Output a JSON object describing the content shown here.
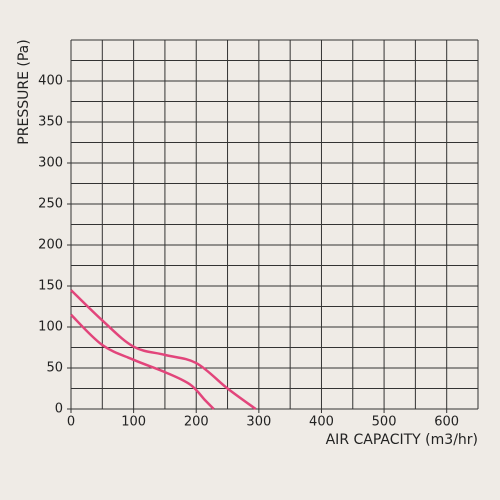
{
  "chart_data": {
    "type": "line",
    "xlabel": "AIR CAPACITY (m3/hr)",
    "ylabel": "PRESSURE (Pa)",
    "xlim": [
      0,
      650
    ],
    "ylim": [
      0,
      450
    ],
    "xticks": [
      0,
      100,
      200,
      300,
      400,
      500,
      600
    ],
    "yticks": [
      0,
      50,
      100,
      150,
      200,
      250,
      300,
      350,
      400
    ],
    "xgrid": [
      0,
      50,
      100,
      150,
      200,
      250,
      300,
      350,
      400,
      450,
      500,
      550,
      600,
      650
    ],
    "ygrid": [
      0,
      25,
      50,
      75,
      100,
      125,
      150,
      175,
      200,
      225,
      250,
      275,
      300,
      325,
      350,
      375,
      400,
      425,
      450
    ],
    "grid": true,
    "series": [
      {
        "color": "#e2457b",
        "x": [
          0,
          50,
          100,
          150,
          200,
          250,
          295
        ],
        "values": [
          145,
          108,
          76,
          66,
          56,
          25,
          0
        ]
      },
      {
        "color": "#e2457b",
        "x": [
          0,
          50,
          100,
          150,
          190,
          215,
          228
        ],
        "values": [
          115,
          78,
          60,
          45,
          30,
          10,
          0
        ]
      }
    ]
  }
}
